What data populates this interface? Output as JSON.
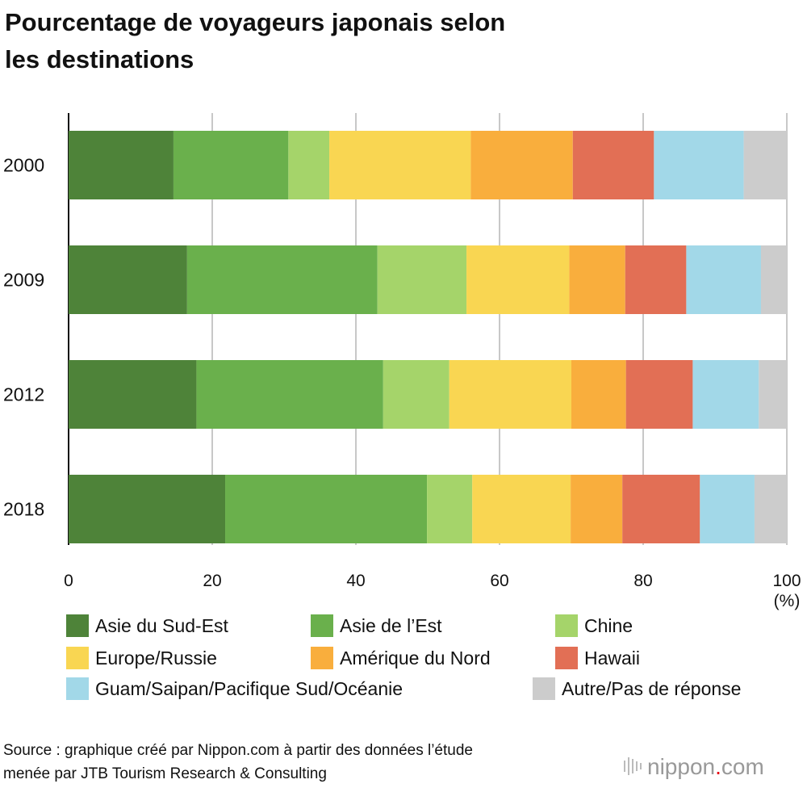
{
  "chart_data": {
    "type": "bar",
    "orientation": "horizontal-stacked",
    "title_line1": "Pourcentage de voyageurs japonais selon",
    "title_line2": "les destinations",
    "categories": [
      "2000",
      "2009",
      "2012",
      "2018"
    ],
    "xlim": [
      0,
      100
    ],
    "xticks": [
      "0",
      "20",
      "40",
      "60",
      "80",
      "100"
    ],
    "xunit": "(%)",
    "grid": true,
    "legend_position": "bottom",
    "series": [
      {
        "name": "Asie du Sud-Est",
        "color": "#4e8339",
        "values": [
          14.6,
          16.5,
          17.8,
          21.8
        ]
      },
      {
        "name": "Asie de l’Est",
        "color": "#6ab04c",
        "values": [
          16.0,
          26.5,
          26.0,
          28.1
        ]
      },
      {
        "name": "Chine",
        "color": "#a5d46a",
        "values": [
          5.7,
          12.4,
          9.2,
          6.3
        ]
      },
      {
        "name": "Europe/Russie",
        "color": "#f9d652",
        "values": [
          19.7,
          14.3,
          17.0,
          13.7
        ]
      },
      {
        "name": "Amérique du Nord",
        "color": "#f9ae3d",
        "values": [
          14.2,
          7.8,
          7.6,
          7.2
        ]
      },
      {
        "name": "Hawaii",
        "color": "#e26f55",
        "values": [
          11.3,
          8.5,
          9.3,
          10.8
        ]
      },
      {
        "name": "Guam/Saipan/Pacifique Sud/Océanie",
        "color": "#a2d8e8",
        "values": [
          12.5,
          10.4,
          9.2,
          7.6
        ]
      },
      {
        "name": "Autre/Pas de réponse",
        "color": "#cccccc",
        "values": [
          6.0,
          3.6,
          3.9,
          4.5
        ]
      }
    ],
    "source_line1": "Source : graphique créé par Nippon.com à partir des données l’étude",
    "source_line2": "menée par JTB Tourism Research & Consulting",
    "logo": "nippon.com"
  }
}
